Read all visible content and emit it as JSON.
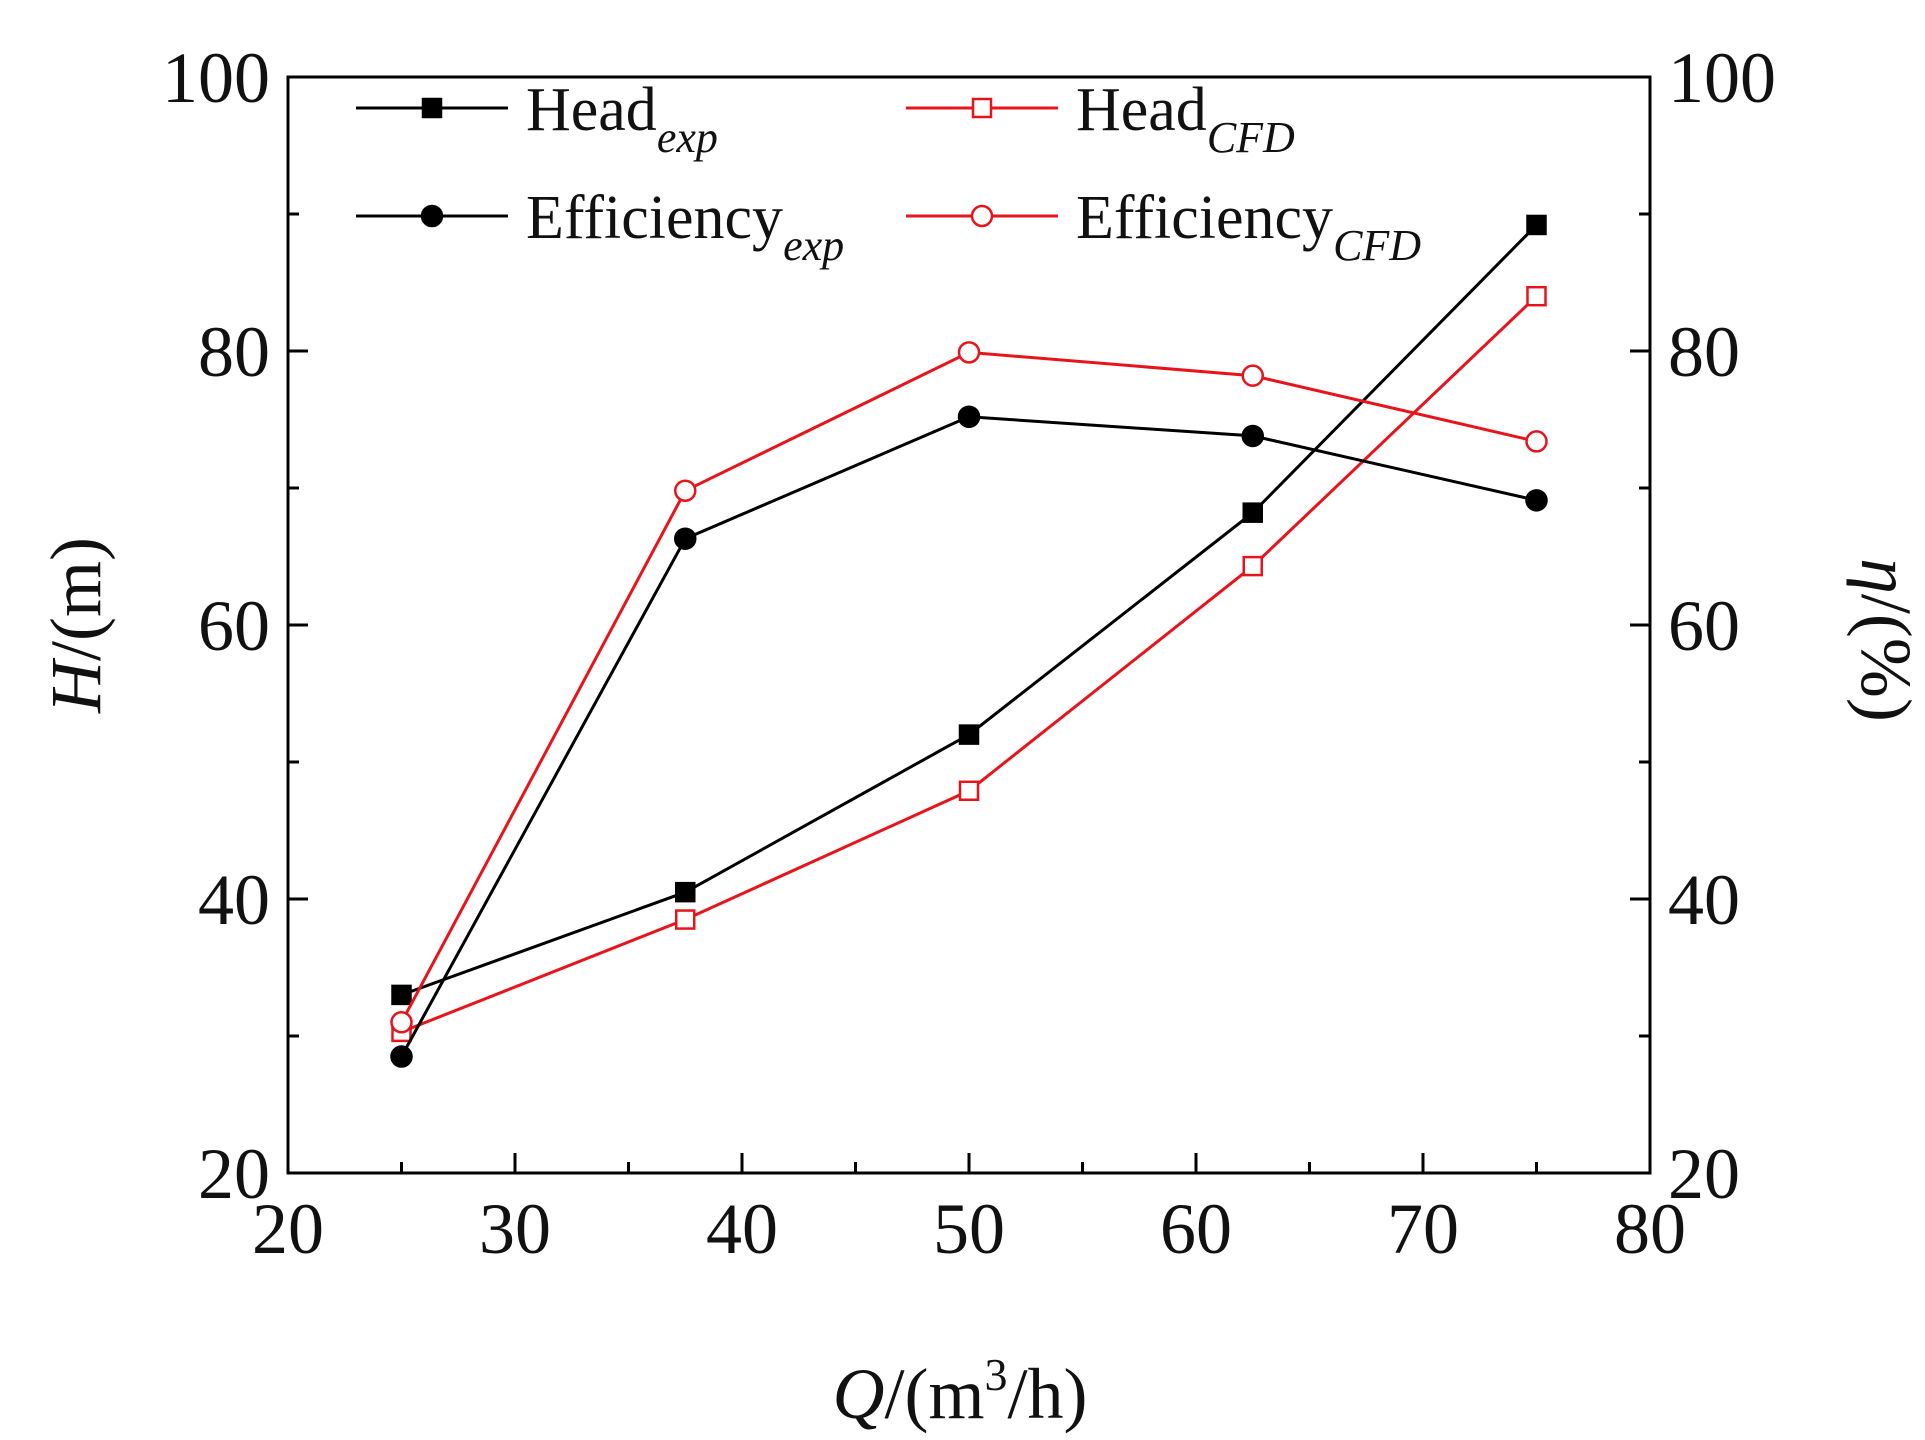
{
  "chart_data": {
    "type": "line",
    "x": [
      25,
      37.5,
      50,
      62.5,
      75
    ],
    "xlim": [
      20,
      80
    ],
    "ylim_left": [
      20,
      100
    ],
    "ylim_right": [
      20,
      100
    ],
    "x_ticks": [
      20,
      30,
      40,
      50,
      60,
      70,
      80
    ],
    "y_ticks_left": [
      20,
      40,
      60,
      80,
      100
    ],
    "y_ticks_right": [
      20,
      40,
      60,
      80,
      100
    ],
    "xlabel": {
      "var": "Q",
      "unit_pre": "/(m",
      "sup": "3",
      "unit_post": "/h)"
    },
    "ylabel_left": {
      "var": "H",
      "unit": "/(m)"
    },
    "ylabel_right": {
      "var": "η",
      "unit": "/(%)"
    },
    "grid": false,
    "legend_position": "top",
    "series": [
      {
        "key": "head_exp",
        "name": "Head",
        "sub": "exp",
        "axis": "left",
        "color": "#000000",
        "marker": "square",
        "filled": true,
        "values": [
          33,
          40.5,
          52,
          68.2,
          89.2
        ]
      },
      {
        "key": "head_cfd",
        "name": "Head",
        "sub": "CFD",
        "axis": "left",
        "color": "#e8141b",
        "marker": "square",
        "filled": false,
        "values": [
          30.3,
          38.5,
          47.9,
          64.3,
          84
        ]
      },
      {
        "key": "eff_exp",
        "name": "Efficiency",
        "sub": "exp",
        "axis": "right",
        "color": "#000000",
        "marker": "circle",
        "filled": true,
        "values": [
          28.5,
          66.3,
          75.2,
          73.8,
          69.1
        ]
      },
      {
        "key": "eff_cfd",
        "name": "Efficiency",
        "sub": "CFD",
        "axis": "right",
        "color": "#e8141b",
        "marker": "circle",
        "filled": false,
        "values": [
          31,
          69.8,
          79.9,
          78.2,
          73.4
        ]
      }
    ]
  }
}
